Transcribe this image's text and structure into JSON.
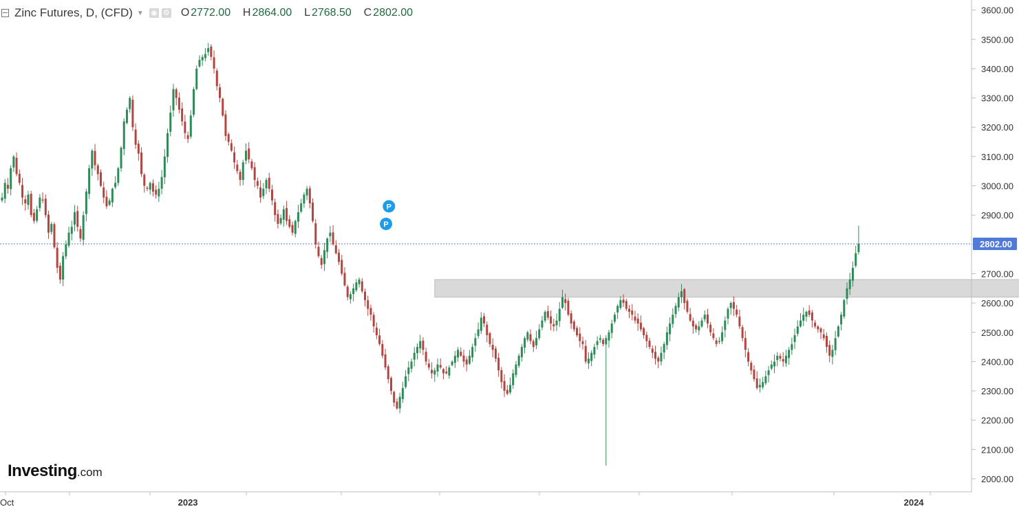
{
  "header": {
    "title": "Zinc Futures, D, (CFD)",
    "ohlc": [
      {
        "key": "O",
        "value": "2772.00"
      },
      {
        "key": "H",
        "value": "2864.00"
      },
      {
        "key": "L",
        "value": "2768.50"
      },
      {
        "key": "C",
        "value": "2802.00"
      }
    ]
  },
  "branding": {
    "logo": "Investing",
    "domain": ".com"
  },
  "colors": {
    "up": "#2e8b57",
    "down": "#b2453f",
    "price_line": "#4f7ad9",
    "zone": "#d9d9d9"
  },
  "chart_data": {
    "type": "candlestick",
    "y_axis": {
      "min": 2000,
      "max": 3600,
      "ticks": [
        "2000.00",
        "2100.00",
        "2200.00",
        "2300.00",
        "2400.00",
        "2500.00",
        "2600.00",
        "2700.00",
        "2800.00",
        "2900.00",
        "3000.00",
        "3100.00",
        "3200.00",
        "3300.00",
        "3400.00",
        "3500.00",
        "3600.00"
      ]
    },
    "x_axis": {
      "labels": [
        {
          "text": "Oct",
          "index": 0
        },
        {
          "text": "2023",
          "index": 64
        },
        {
          "text": "2024",
          "index": 314
        }
      ]
    },
    "current_price": {
      "value": 2802,
      "label": "2802.00"
    },
    "zone": {
      "from": 2620,
      "to": 2680,
      "start_index": 149,
      "end_index": 395
    },
    "markers": [
      {
        "label": "P",
        "value": 2930,
        "index": 133
      },
      {
        "label": "P",
        "value": 2870,
        "index": 132
      }
    ],
    "closes": [
      2960,
      3010,
      2990,
      3060,
      3100,
      3040,
      3010,
      2960,
      2940,
      2970,
      2900,
      2880,
      2920,
      2960,
      2950,
      2900,
      2840,
      2870,
      2790,
      2720,
      2680,
      2760,
      2800,
      2840,
      2860,
      2910,
      2860,
      2820,
      2900,
      2980,
      3060,
      3120,
      3070,
      3040,
      3000,
      2960,
      2930,
      2950,
      2990,
      3010,
      3060,
      3130,
      3220,
      3260,
      3300,
      3200,
      3140,
      3110,
      3040,
      3000,
      2990,
      3010,
      2980,
      2970,
      2990,
      3030,
      3100,
      3180,
      3250,
      3330,
      3300,
      3260,
      3220,
      3180,
      3160,
      3240,
      3330,
      3400,
      3430,
      3440,
      3450,
      3470,
      3440,
      3400,
      3340,
      3300,
      3240,
      3170,
      3150,
      3120,
      3080,
      3050,
      3020,
      3080,
      3120,
      3090,
      3060,
      3020,
      3000,
      2960,
      2990,
      3020,
      2990,
      2950,
      2900,
      2870,
      2890,
      2920,
      2880,
      2860,
      2840,
      2880,
      2910,
      2940,
      2970,
      2990,
      2940,
      2880,
      2800,
      2760,
      2730,
      2780,
      2820,
      2840,
      2800,
      2770,
      2740,
      2700,
      2660,
      2620,
      2630,
      2650,
      2670,
      2680,
      2640,
      2610,
      2580,
      2560,
      2520,
      2490,
      2460,
      2420,
      2380,
      2340,
      2300,
      2260,
      2240,
      2280,
      2310,
      2350,
      2380,
      2400,
      2430,
      2450,
      2470,
      2440,
      2400,
      2380,
      2360,
      2370,
      2390,
      2380,
      2360,
      2360,
      2380,
      2400,
      2420,
      2440,
      2420,
      2400,
      2390,
      2420,
      2450,
      2480,
      2510,
      2550,
      2530,
      2490,
      2460,
      2440,
      2410,
      2370,
      2330,
      2300,
      2290,
      2320,
      2360,
      2390,
      2420,
      2450,
      2480,
      2500,
      2470,
      2450,
      2480,
      2510,
      2540,
      2570,
      2550,
      2530,
      2520,
      2540,
      2580,
      2620,
      2600,
      2560,
      2530,
      2510,
      2490,
      2470,
      2460,
      2400,
      2410,
      2430,
      2450,
      2470,
      2480,
      2460,
      2480,
      2500,
      2530,
      2560,
      2590,
      2610,
      2600,
      2580,
      2570,
      2560,
      2540,
      2530,
      2510,
      2490,
      2470,
      2450,
      2430,
      2410,
      2400,
      2430,
      2460,
      2500,
      2530,
      2560,
      2590,
      2620,
      2640,
      2600,
      2570,
      2540,
      2520,
      2510,
      2520,
      2540,
      2560,
      2530,
      2500,
      2480,
      2460,
      2470,
      2500,
      2540,
      2580,
      2600,
      2580,
      2560,
      2520,
      2480,
      2440,
      2400,
      2370,
      2340,
      2310,
      2320,
      2330,
      2350,
      2370,
      2390,
      2400,
      2420,
      2410,
      2400,
      2420,
      2440,
      2460,
      2490,
      2520,
      2540,
      2560,
      2570,
      2560,
      2540,
      2520,
      2510,
      2500,
      2480,
      2450,
      2420,
      2440,
      2480,
      2520,
      2560,
      2610,
      2650,
      2680,
      2720,
      2770,
      2802
    ]
  }
}
